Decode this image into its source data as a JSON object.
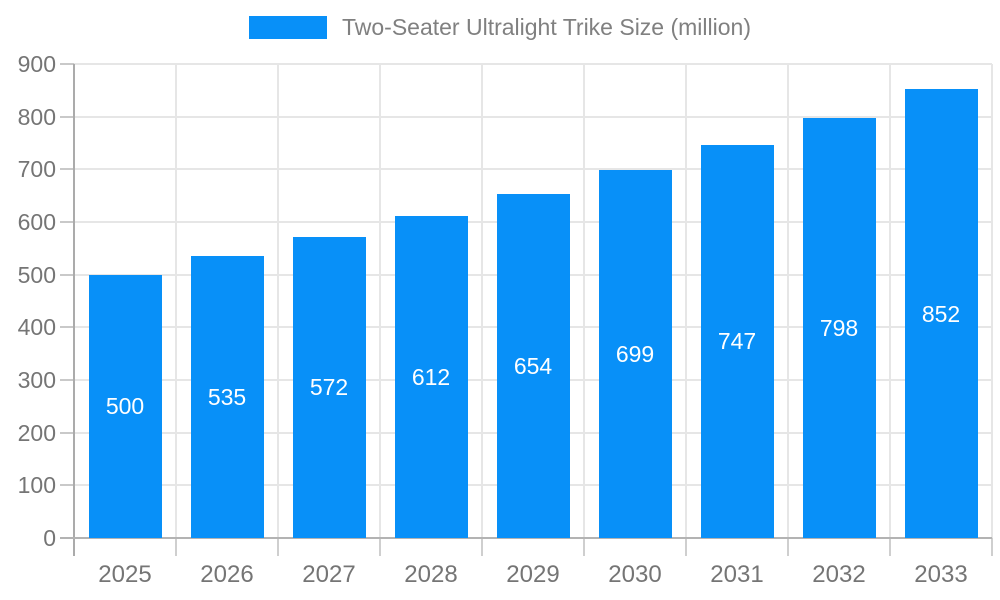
{
  "legend": {
    "label": "Two-Seater Ultralight Trike Size (million)"
  },
  "chart_data": {
    "type": "bar",
    "title": "Two-Seater Ultralight Trike Size (million)",
    "series_name": "Two-Seater Ultralight Trike Size (million)",
    "categories": [
      "2025",
      "2026",
      "2027",
      "2028",
      "2029",
      "2030",
      "2031",
      "2032",
      "2033"
    ],
    "values": [
      500,
      535,
      572,
      612,
      654,
      699,
      747,
      798,
      852
    ],
    "bar_value_labels": [
      "500",
      "535",
      "572",
      "612",
      "654",
      "699",
      "747",
      "798",
      "852"
    ],
    "xlabel": "",
    "ylabel": "",
    "ylim": [
      0,
      900
    ],
    "yticks": [
      0,
      100,
      200,
      300,
      400,
      500,
      600,
      700,
      800,
      900
    ],
    "grid": true,
    "legend_position": "top",
    "value_label_position": "inside-middle"
  },
  "colors": {
    "bar": "#0890f8",
    "bar_label": "#ffffff",
    "axis_label": "#757575",
    "legend_text": "#808080",
    "gridline": "#e6e6e6",
    "axis_line": "#b3b3b3",
    "tick": "#c9c9c9",
    "background": "#ffffff"
  }
}
